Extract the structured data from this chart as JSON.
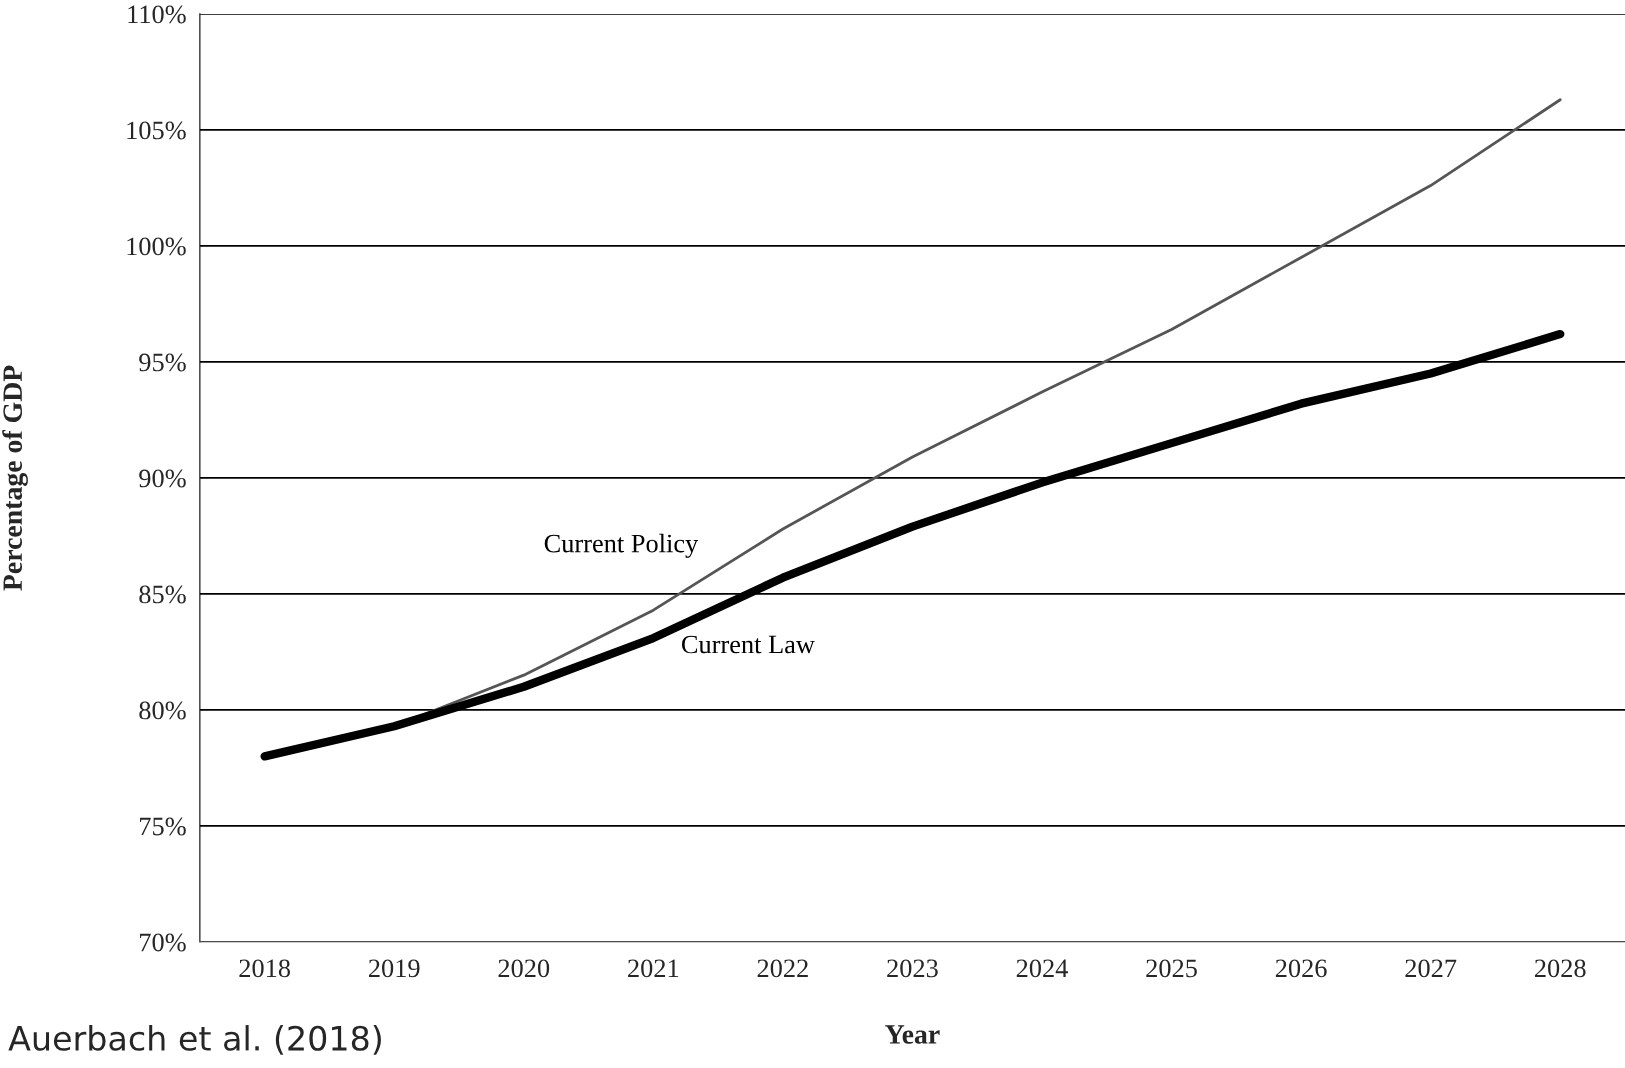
{
  "chart_data": {
    "type": "line",
    "xlabel": "Year",
    "ylabel": "Percentage of GDP",
    "categories": [
      "2018",
      "2019",
      "2020",
      "2021",
      "2022",
      "2023",
      "2024",
      "2025",
      "2026",
      "2027",
      "2028"
    ],
    "series": [
      {
        "name": "Current Policy",
        "color": "#555555",
        "values": [
          78.0,
          79.3,
          81.5,
          84.3,
          87.8,
          90.9,
          93.7,
          96.4,
          99.5,
          102.6,
          106.3
        ]
      },
      {
        "name": "Current Law",
        "color": "#000000",
        "values": [
          78.0,
          79.3,
          81.0,
          83.1,
          85.7,
          87.9,
          89.8,
          91.5,
          93.2,
          94.5,
          96.2
        ]
      }
    ],
    "ylim": [
      70,
      110
    ],
    "yticks": [
      {
        "value": 70,
        "label": "70%"
      },
      {
        "value": 75,
        "label": "75%"
      },
      {
        "value": 80,
        "label": "80%"
      },
      {
        "value": 85,
        "label": "85%"
      },
      {
        "value": 90,
        "label": "90%"
      },
      {
        "value": 95,
        "label": "95%"
      },
      {
        "value": 100,
        "label": "100%"
      },
      {
        "value": 105,
        "label": "105%"
      },
      {
        "value": 110,
        "label": "110%"
      }
    ],
    "grid": "y",
    "annotations": [
      "Auerbach et al. (2018)"
    ]
  }
}
